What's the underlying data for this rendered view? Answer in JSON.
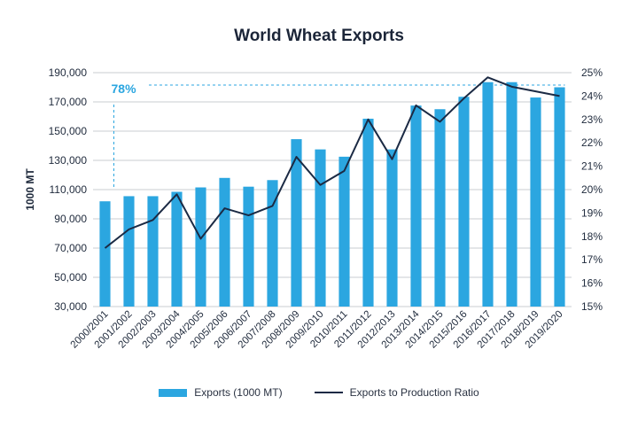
{
  "colors": {
    "bar": "#2ba6e0",
    "line": "#1b2a44",
    "annotation": "#2ba6e0",
    "axis": "#c9ccd1",
    "text": "#1f2a3c"
  },
  "chart_data": {
    "type": "bar",
    "title": "World Wheat Exports",
    "categories": [
      "2000/2001",
      "2001/2002",
      "2002/2003",
      "2003/2004",
      "2004/2005",
      "2005/2006",
      "2006/2007",
      "2007/2008",
      "2008/2009",
      "2009/2010",
      "2010/2011",
      "2011/2012",
      "2012/2013",
      "2013/2014",
      "2014/2015",
      "2015/2016",
      "2016/2017",
      "2017/2018",
      "2018/2019",
      "2019/2020"
    ],
    "ylabel": "1000 MT",
    "ylim": [
      30000,
      190000
    ],
    "yticks": [
      "30,000",
      "50,000",
      "70,000",
      "90,000",
      "110,000",
      "130,000",
      "150,000",
      "170,000",
      "190,000"
    ],
    "y2lim": [
      15,
      25
    ],
    "y2ticks": [
      "15%",
      "16%",
      "17%",
      "18%",
      "19%",
      "20%",
      "21%",
      "22%",
      "23%",
      "24%",
      "25%"
    ],
    "series": [
      {
        "name": "Exports (1000 MT)",
        "type": "bar",
        "axis": "left",
        "values": [
          102000,
          105500,
          105500,
          108500,
          111500,
          118000,
          112000,
          116500,
          144500,
          137500,
          132500,
          158500,
          137500,
          167500,
          165000,
          173500,
          183500,
          183500,
          173000,
          180000
        ]
      },
      {
        "name": "Exports to Production Ratio",
        "type": "line",
        "axis": "right",
        "values": [
          17.5,
          18.3,
          18.7,
          19.8,
          17.9,
          19.2,
          18.9,
          19.3,
          21.4,
          20.2,
          20.8,
          23.0,
          21.3,
          23.6,
          22.9,
          23.9,
          24.8,
          24.4,
          24.2,
          24.0
        ]
      }
    ],
    "annotation": {
      "text": "78%"
    },
    "legend_position": "bottom"
  }
}
